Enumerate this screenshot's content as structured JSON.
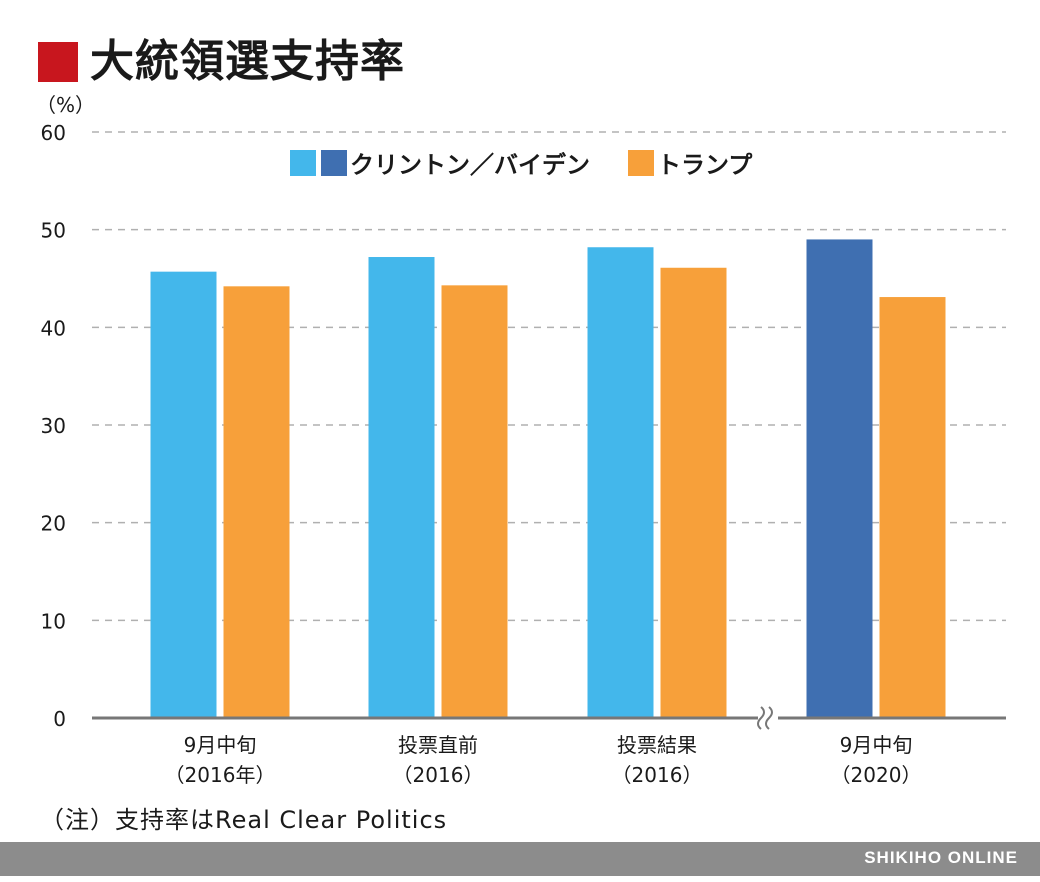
{
  "title": "大統領選支持率",
  "note": "（注）支持率はReal Clear Politics",
  "footer": "SHIKIHO ONLINE",
  "colors": {
    "title_mark": "#c8161e",
    "clinton": "#43b7eb",
    "biden": "#3f6fb1",
    "trump": "#f7a03a",
    "grid": "#b0b0b0",
    "axis": "#777777",
    "footer_bg": "#8c8c8c"
  },
  "chart_data": {
    "type": "bar",
    "unit_label": "（%）",
    "ylim": [
      0,
      60
    ],
    "yticks": [
      0,
      10,
      20,
      30,
      40,
      50,
      60
    ],
    "grid": true,
    "grid_style": "dashed",
    "axis_break_before_last": true,
    "legend": {
      "placement": "top",
      "items": [
        {
          "label": "クリントン／バイデン",
          "colors": [
            "#43b7eb",
            "#3f6fb1"
          ]
        },
        {
          "label": "トランプ",
          "colors": [
            "#f7a03a"
          ]
        }
      ]
    },
    "categories": [
      [
        "9月中旬",
        "（2016年）"
      ],
      [
        "投票直前",
        "（2016）"
      ],
      [
        "投票結果",
        "（2016）"
      ],
      [
        "9月中旬",
        "（2020）"
      ]
    ],
    "series": [
      {
        "name": "クリントン／バイデン",
        "values": [
          45.7,
          47.2,
          48.2,
          49.0
        ],
        "colors": [
          "#43b7eb",
          "#43b7eb",
          "#43b7eb",
          "#3f6fb1"
        ]
      },
      {
        "name": "トランプ",
        "values": [
          44.2,
          44.3,
          46.1,
          43.1
        ],
        "colors": [
          "#f7a03a",
          "#f7a03a",
          "#f7a03a",
          "#f7a03a"
        ]
      }
    ]
  }
}
